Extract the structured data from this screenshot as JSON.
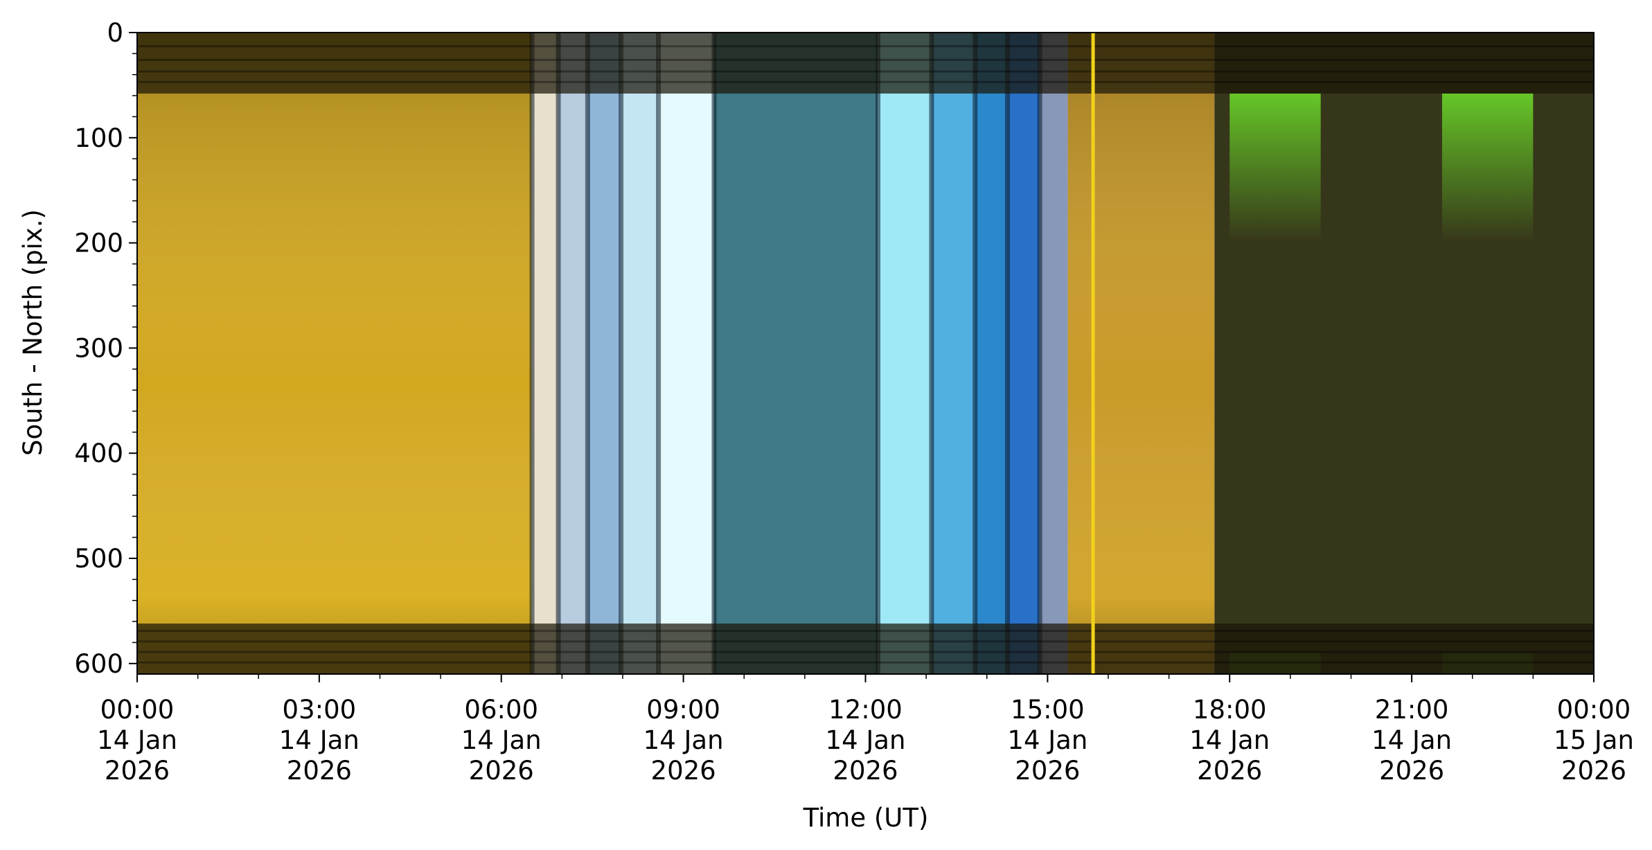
{
  "chart_data": {
    "type": "heatmap",
    "title": "",
    "xlabel": "Time (UT)",
    "ylabel": "South - North (pix.)",
    "xlim": [
      "2026-01-14T00:00",
      "2026-01-15T00:00"
    ],
    "ylim": [
      610,
      0
    ],
    "y_inverted": true,
    "grid": false,
    "x_ticks": [
      {
        "value": "2026-01-14T00:00",
        "lines": [
          "00:00",
          "14 Jan",
          "2026"
        ]
      },
      {
        "value": "2026-01-14T03:00",
        "lines": [
          "03:00",
          "14 Jan",
          "2026"
        ]
      },
      {
        "value": "2026-01-14T06:00",
        "lines": [
          "06:00",
          "14 Jan",
          "2026"
        ]
      },
      {
        "value": "2026-01-14T09:00",
        "lines": [
          "09:00",
          "14 Jan",
          "2026"
        ]
      },
      {
        "value": "2026-01-14T12:00",
        "lines": [
          "12:00",
          "14 Jan",
          "2026"
        ]
      },
      {
        "value": "2026-01-14T15:00",
        "lines": [
          "15:00",
          "14 Jan",
          "2026"
        ]
      },
      {
        "value": "2026-01-14T18:00",
        "lines": [
          "18:00",
          "14 Jan",
          "2026"
        ]
      },
      {
        "value": "2026-01-14T21:00",
        "lines": [
          "21:00",
          "14 Jan",
          "2026"
        ]
      },
      {
        "value": "2026-01-15T00:00",
        "lines": [
          "00:00",
          "15 Jan",
          "2026"
        ]
      }
    ],
    "y_ticks": [
      0,
      100,
      200,
      300,
      400,
      500,
      600
    ],
    "y_minor_step": 20,
    "x_minor_step_minutes": 60,
    "dark_bands_y": [
      [
        0,
        58
      ],
      [
        562,
        610
      ]
    ],
    "time_segments": [
      {
        "start": "2026-01-14T00:00",
        "end": "2026-01-14T06:30",
        "color": "#d2a820"
      },
      {
        "start": "2026-01-14T06:30",
        "end": "2026-01-14T06:56",
        "color": "#e8e0cc"
      },
      {
        "start": "2026-01-14T06:56",
        "end": "2026-01-14T07:25",
        "color": "#b8cce0"
      },
      {
        "start": "2026-01-14T07:25",
        "end": "2026-01-14T07:58",
        "color": "#8fb6d6"
      },
      {
        "start": "2026-01-14T07:58",
        "end": "2026-01-14T08:35",
        "color": "#c4e6f2"
      },
      {
        "start": "2026-01-14T08:35",
        "end": "2026-01-14T09:30",
        "color": "#e4fafc"
      },
      {
        "start": "2026-01-14T09:30",
        "end": "2026-01-14T12:12",
        "color": "#3f7a86"
      },
      {
        "start": "2026-01-14T12:12",
        "end": "2026-01-14T13:05",
        "color": "#9fe8f6"
      },
      {
        "start": "2026-01-14T13:05",
        "end": "2026-01-14T13:48",
        "color": "#52b0e0"
      },
      {
        "start": "2026-01-14T13:48",
        "end": "2026-01-14T14:20",
        "color": "#2c88cc"
      },
      {
        "start": "2026-01-14T14:20",
        "end": "2026-01-14T14:52",
        "color": "#2870c8"
      },
      {
        "start": "2026-01-14T14:52",
        "end": "2026-01-14T15:20",
        "color": "#8898b8"
      },
      {
        "start": "2026-01-14T15:20",
        "end": "2026-01-14T17:45",
        "color": "#c89a28"
      },
      {
        "start": "2026-01-14T17:45",
        "end": "2026-01-15T00:00",
        "color": "#36361a"
      }
    ],
    "highlights": [
      {
        "type": "vertical_line",
        "time": "2026-01-14T15:45",
        "color": "#f2d21a"
      },
      {
        "type": "green_emission",
        "start": "2026-01-14T18:00",
        "end": "2026-01-14T19:30",
        "color": "#66dd22"
      },
      {
        "type": "green_emission",
        "start": "2026-01-14T21:30",
        "end": "2026-01-14T23:00",
        "color": "#55bb22"
      }
    ]
  }
}
